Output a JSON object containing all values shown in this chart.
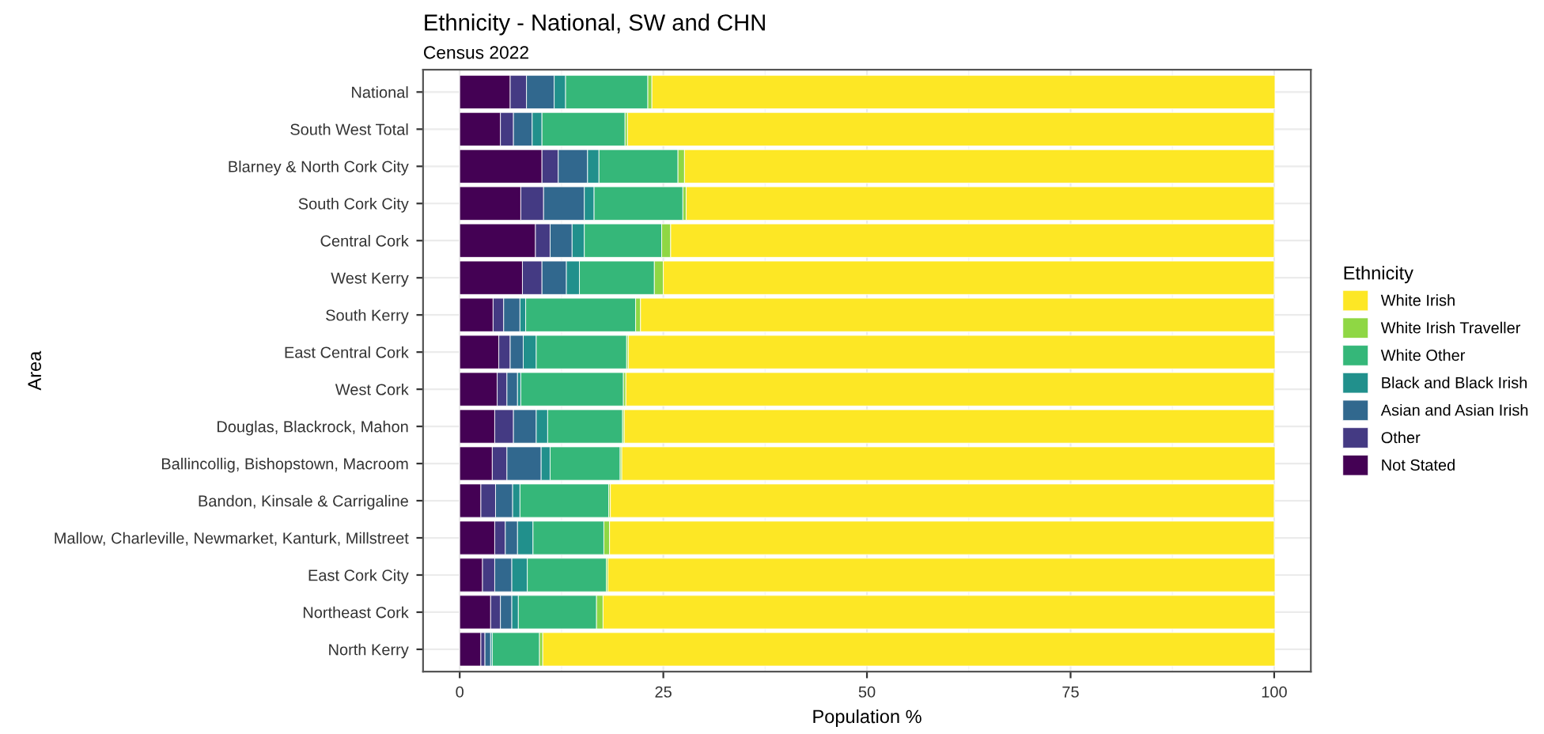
{
  "chart_data": {
    "type": "bar",
    "orientation": "horizontal",
    "stacked": true,
    "title": "Ethnicity - National, SW and CHN",
    "subtitle": "Census 2022",
    "xlabel": "Population %",
    "ylabel": "Area",
    "legend_title": "Ethnicity",
    "legend": "right",
    "grid": true,
    "xlim": [
      -4.5,
      104.5
    ],
    "xticks": [
      0,
      25,
      50,
      75,
      100
    ],
    "categories": [
      "National",
      "South West Total",
      "Blarney & North Cork City",
      "South Cork City",
      "Central Cork",
      "West Kerry",
      "South Kerry",
      "East Central Cork",
      "West Cork",
      "Douglas, Blackrock, Mahon",
      "Ballincollig, Bishopstown, Macroom",
      "Bandon, Kinsale & Carrigaline",
      "Mallow, Charleville, Newmarket, Kanturk, Millstreet",
      "East Cork City",
      "Northeast Cork",
      "North Kerry"
    ],
    "series": [
      {
        "name": "Not Stated",
        "color": "#440154",
        "values": [
          6.2,
          5.0,
          10.1,
          7.5,
          9.3,
          7.7,
          4.1,
          4.8,
          4.6,
          4.3,
          4.0,
          2.6,
          4.3,
          2.8,
          3.8,
          2.6
        ]
      },
      {
        "name": "Other",
        "color": "#443a83",
        "values": [
          2.0,
          1.6,
          2.0,
          2.8,
          1.8,
          2.4,
          1.3,
          1.4,
          1.2,
          2.3,
          1.8,
          1.8,
          1.3,
          1.5,
          1.2,
          0.5
        ]
      },
      {
        "name": "Asian and Asian Irish",
        "color": "#31688e",
        "values": [
          3.4,
          2.3,
          3.6,
          5.0,
          2.7,
          3.0,
          2.0,
          1.6,
          1.3,
          2.8,
          4.2,
          2.1,
          1.5,
          2.1,
          1.4,
          0.7
        ]
      },
      {
        "name": "Black and Black Irish",
        "color": "#21908c",
        "values": [
          1.4,
          1.2,
          1.4,
          1.2,
          1.5,
          1.6,
          0.7,
          1.6,
          0.4,
          1.4,
          1.1,
          0.9,
          1.9,
          1.9,
          0.8,
          0.2
        ]
      },
      {
        "name": "White Other",
        "color": "#35b779",
        "values": [
          10.1,
          10.2,
          9.7,
          10.9,
          9.5,
          9.2,
          13.5,
          11.1,
          12.6,
          9.2,
          8.6,
          10.9,
          8.7,
          9.7,
          9.6,
          5.8
        ]
      },
      {
        "name": "White Irish Traveller",
        "color": "#8fd744",
        "values": [
          0.5,
          0.3,
          0.8,
          0.4,
          1.1,
          1.1,
          0.6,
          0.2,
          0.3,
          0.2,
          0.2,
          0.2,
          0.7,
          0.2,
          0.8,
          0.4
        ]
      },
      {
        "name": "White Irish",
        "color": "#fde725",
        "values": [
          76.5,
          79.4,
          72.4,
          72.2,
          74.1,
          75.0,
          77.8,
          79.4,
          79.6,
          79.8,
          80.2,
          81.5,
          81.6,
          81.9,
          82.5,
          89.9
        ]
      }
    ]
  }
}
